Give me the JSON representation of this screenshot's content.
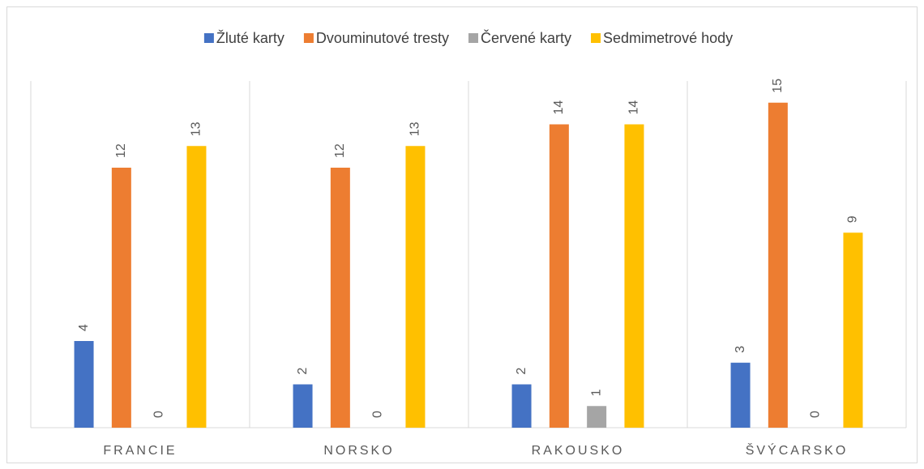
{
  "chart_data": {
    "type": "bar",
    "categories": [
      "FRANCIE",
      "NORSKO",
      "RAKOUSKO",
      "ŠVÝCARSKO"
    ],
    "series": [
      {
        "name": "Žluté karty",
        "color": "#4472c4",
        "values": [
          4,
          2,
          2,
          3
        ]
      },
      {
        "name": "Dvouminutové tresty",
        "color": "#ed7d31",
        "values": [
          12,
          12,
          14,
          15
        ]
      },
      {
        "name": "Červené karty",
        "color": "#a5a5a5",
        "values": [
          0,
          0,
          1,
          0
        ]
      },
      {
        "name": "Sedmimetrové hody",
        "color": "#ffc000",
        "values": [
          13,
          13,
          14,
          9
        ]
      }
    ],
    "ylim": [
      0,
      16
    ],
    "legend": "top"
  }
}
